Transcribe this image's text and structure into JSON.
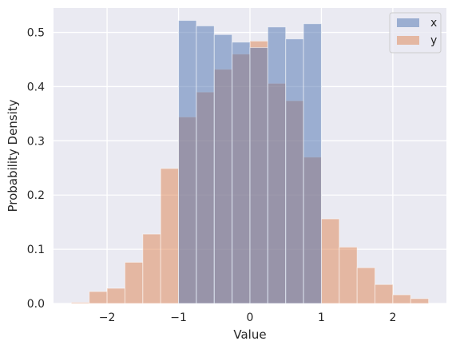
{
  "chart_data": {
    "type": "bar",
    "subtype": "histogram-overlay",
    "xlabel": "Value",
    "ylabel": "Probability Density",
    "xlim": [
      -2.75,
      2.75
    ],
    "ylim": [
      0,
      0.545
    ],
    "xticks": [
      -2,
      -1,
      0,
      1,
      2
    ],
    "yticks": [
      0.0,
      0.1,
      0.2,
      0.3,
      0.4,
      0.5
    ],
    "xtick_labels": [
      "−2",
      "−1",
      "0",
      "1",
      "2"
    ],
    "ytick_labels": [
      "0.0",
      "0.1",
      "0.2",
      "0.3",
      "0.4",
      "0.5"
    ],
    "grid": true,
    "legend_position": "top-right",
    "series": [
      {
        "name": "x",
        "color": "#4c72b0",
        "alpha": 0.5,
        "bins": [
          {
            "x0": -1.0,
            "x1": -0.75,
            "value": 0.522
          },
          {
            "x0": -0.75,
            "x1": -0.5,
            "value": 0.512
          },
          {
            "x0": -0.5,
            "x1": -0.25,
            "value": 0.496
          },
          {
            "x0": -0.25,
            "x1": 0.0,
            "value": 0.482
          },
          {
            "x0": 0.0,
            "x1": 0.25,
            "value": 0.472
          },
          {
            "x0": 0.25,
            "x1": 0.5,
            "value": 0.51
          },
          {
            "x0": 0.5,
            "x1": 0.75,
            "value": 0.488
          },
          {
            "x0": 0.75,
            "x1": 1.0,
            "value": 0.516
          }
        ]
      },
      {
        "name": "y",
        "color": "#dd8452",
        "alpha": 0.5,
        "bins": [
          {
            "x0": -2.5,
            "x1": -2.25,
            "value": 0.002
          },
          {
            "x0": -2.25,
            "x1": -2.0,
            "value": 0.022
          },
          {
            "x0": -2.0,
            "x1": -1.75,
            "value": 0.028
          },
          {
            "x0": -1.75,
            "x1": -1.5,
            "value": 0.076
          },
          {
            "x0": -1.5,
            "x1": -1.25,
            "value": 0.128
          },
          {
            "x0": -1.25,
            "x1": -1.0,
            "value": 0.249
          },
          {
            "x0": -1.0,
            "x1": -0.75,
            "value": 0.344
          },
          {
            "x0": -0.75,
            "x1": -0.5,
            "value": 0.39
          },
          {
            "x0": -0.5,
            "x1": -0.25,
            "value": 0.432
          },
          {
            "x0": -0.25,
            "x1": 0.0,
            "value": 0.46
          },
          {
            "x0": 0.0,
            "x1": 0.25,
            "value": 0.484
          },
          {
            "x0": 0.25,
            "x1": 0.5,
            "value": 0.406
          },
          {
            "x0": 0.5,
            "x1": 0.75,
            "value": 0.374
          },
          {
            "x0": 0.75,
            "x1": 1.0,
            "value": 0.27
          },
          {
            "x0": 1.0,
            "x1": 1.25,
            "value": 0.156
          },
          {
            "x0": 1.25,
            "x1": 1.5,
            "value": 0.104
          },
          {
            "x0": 1.5,
            "x1": 1.75,
            "value": 0.066
          },
          {
            "x0": 1.75,
            "x1": 2.0,
            "value": 0.035
          },
          {
            "x0": 2.0,
            "x1": 2.25,
            "value": 0.016
          },
          {
            "x0": 2.25,
            "x1": 2.5,
            "value": 0.009
          }
        ]
      }
    ]
  }
}
